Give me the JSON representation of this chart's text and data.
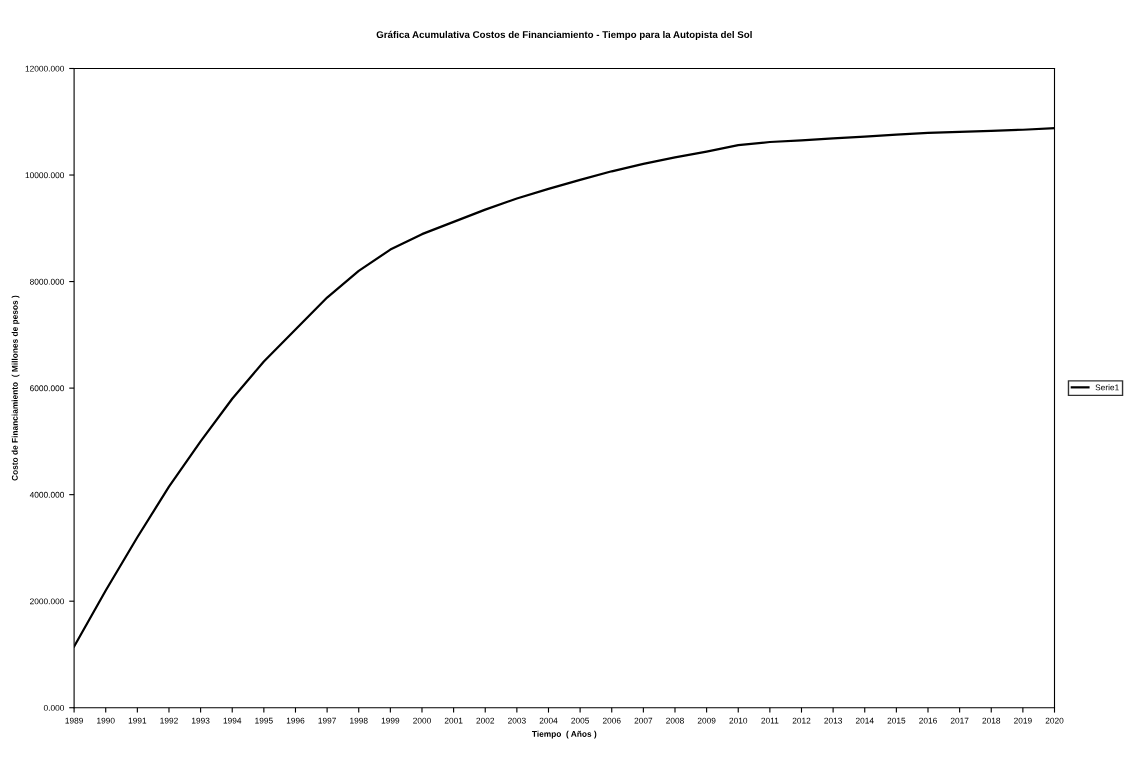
{
  "chart_data": {
    "type": "line",
    "title": "Gráfica Acumulativa Costos de Financiamiento - Tiempo para la Autopista del Sol",
    "xlabel": "Tiempo  ( Años )",
    "ylabel": "Costo de Financiamiento  ( Millones de pesos )",
    "categories": [
      "1989",
      "1990",
      "1991",
      "1992",
      "1993",
      "1994",
      "1995",
      "1996",
      "1997",
      "1998",
      "1999",
      "2000",
      "2001",
      "2002",
      "2003",
      "2004",
      "2005",
      "2006",
      "2007",
      "2008",
      "2009",
      "2010",
      "2011",
      "2012",
      "2013",
      "2014",
      "2015",
      "2016",
      "2017",
      "2018",
      "2019",
      "2020"
    ],
    "series": [
      {
        "name": "Serie1",
        "color": "#000000",
        "values": [
          1150,
          2200,
          3200,
          4150,
          5000,
          5800,
          6500,
          7100,
          7700,
          8200,
          8600,
          8890,
          9120,
          9350,
          9560,
          9740,
          9910,
          10070,
          10210,
          10330,
          10440,
          10560,
          10620,
          10650,
          10690,
          10720,
          10760,
          10790,
          10810,
          10830,
          10850,
          10880
        ]
      }
    ],
    "ylim": [
      0,
      12000
    ],
    "yticks": [
      {
        "value": 0,
        "label": "0.000"
      },
      {
        "value": 2000,
        "label": "2000.000"
      },
      {
        "value": 4000,
        "label": "4000.000"
      },
      {
        "value": 6000,
        "label": "6000.000"
      },
      {
        "value": 8000,
        "label": "8000.000"
      },
      {
        "value": 10000,
        "label": "10000.000"
      },
      {
        "value": 12000,
        "label": "12000.000"
      }
    ],
    "grid": false,
    "legend": "right",
    "marker": "none",
    "line_style": "solid"
  }
}
